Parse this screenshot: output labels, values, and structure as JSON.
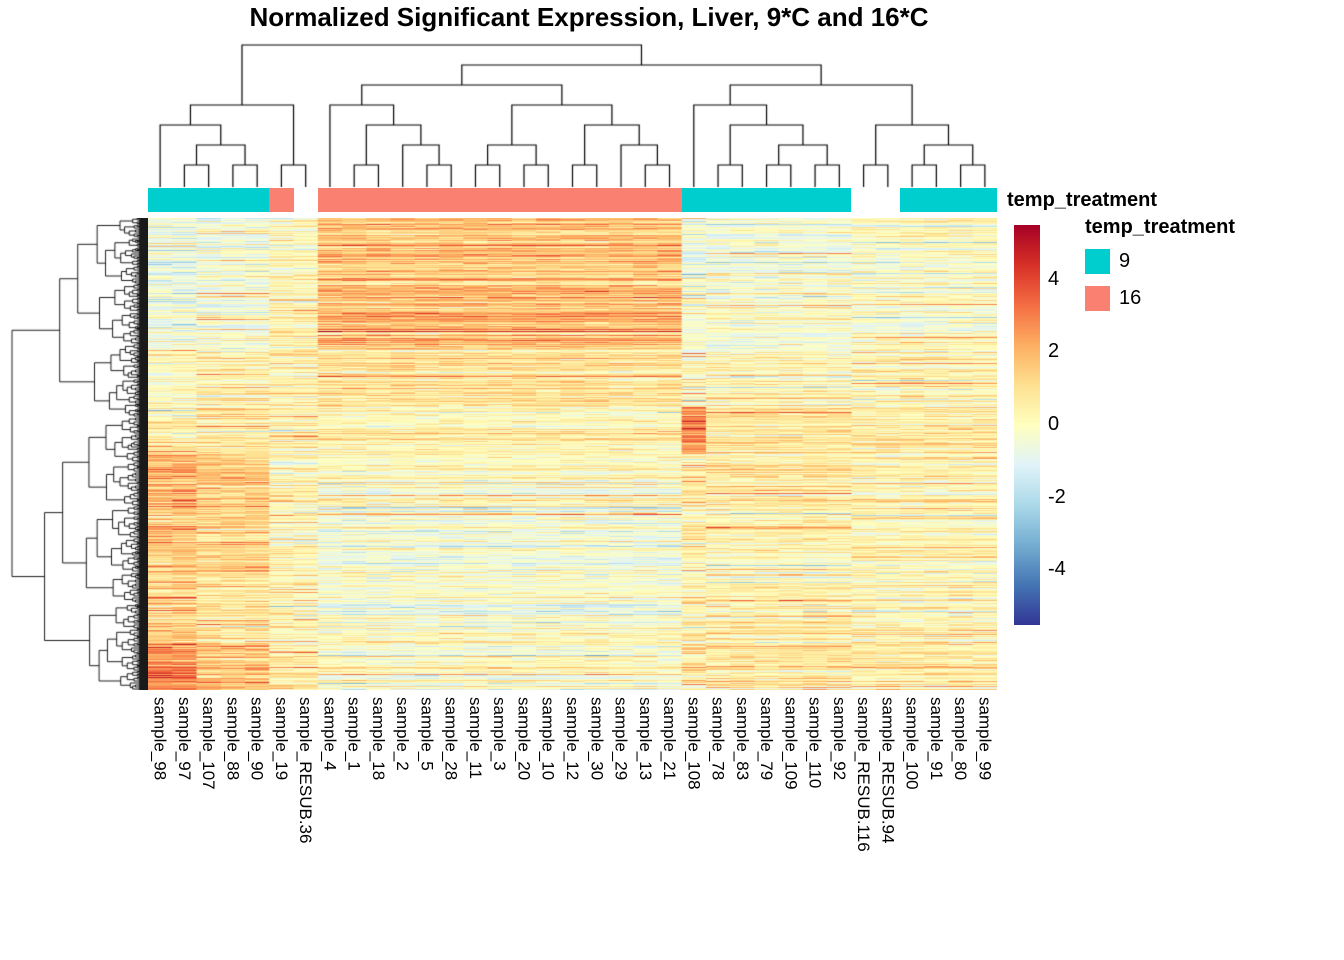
{
  "chart_data": {
    "type": "heatmap",
    "title": "Normalized Significant Expression, Liver, 9*C and 16*C",
    "columns": [
      "sample_98",
      "sample_97",
      "sample_107",
      "sample_88",
      "sample_90",
      "sample_19",
      "sample_RESUB.36",
      "sample_4",
      "sample_1",
      "sample_18",
      "sample_2",
      "sample_5",
      "sample_28",
      "sample_11",
      "sample_3",
      "sample_20",
      "sample_10",
      "sample_12",
      "sample_30",
      "sample_29",
      "sample_13",
      "sample_21",
      "sample_108",
      "sample_78",
      "sample_83",
      "sample_79",
      "sample_109",
      "sample_110",
      "sample_92",
      "sample_RESUB.116",
      "sample_RESUB.94",
      "sample_100",
      "sample_91",
      "sample_80",
      "sample_99"
    ],
    "column_annotation": {
      "name": "temp_treatment",
      "values": [
        "9",
        "9",
        "9",
        "9",
        "9",
        "16",
        null,
        "16",
        "16",
        "16",
        "16",
        "16",
        "16",
        "16",
        "16",
        "16",
        "16",
        "16",
        "16",
        "16",
        "16",
        "16",
        "9",
        "9",
        "9",
        "9",
        "9",
        "9",
        "9",
        null,
        null,
        "9",
        "9",
        "9",
        "9"
      ]
    },
    "annotation_colors": {
      "9": "#00CDCD",
      "16": "#FA8072"
    },
    "legend": {
      "title": "temp_treatment",
      "entries": [
        {
          "label": "9",
          "color": "#00CDCD"
        },
        {
          "label": "16",
          "color": "#FA8072"
        }
      ]
    },
    "colorbar": {
      "ticks": [
        4,
        2,
        0,
        -2,
        -4
      ],
      "domain": [
        -5.5,
        5.5
      ],
      "palette": [
        "#313695",
        "#4575B4",
        "#74ADD1",
        "#ABD9E9",
        "#E0F3F8",
        "#FFFFBF",
        "#FEE090",
        "#FDAE61",
        "#F46D43",
        "#D73027",
        "#A50026"
      ]
    },
    "n_rows": 472,
    "col_groups": [
      [
        0,
        1
      ],
      [
        2,
        4
      ],
      [
        5,
        6
      ],
      [
        7,
        21
      ],
      [
        22,
        22
      ],
      [
        23,
        28
      ],
      [
        29,
        34
      ]
    ],
    "row_blocks": [
      {
        "until": 0.17,
        "means": [
          -0.6,
          -0.5,
          0.2,
          1.6,
          -0.4,
          -0.4,
          -0.1
        ]
      },
      {
        "until": 0.28,
        "means": [
          -0.5,
          -0.4,
          0.4,
          1.9,
          -0.3,
          -0.3,
          0.0
        ]
      },
      {
        "until": 0.4,
        "means": [
          0.2,
          0.3,
          0.5,
          0.9,
          0.0,
          0.1,
          0.2
        ]
      },
      {
        "until": 0.5,
        "means": [
          0.5,
          0.6,
          0.3,
          0.3,
          2.8,
          0.9,
          0.8
        ]
      },
      {
        "until": 0.62,
        "means": [
          2.0,
          1.4,
          0.4,
          0.0,
          0.5,
          0.6,
          0.3
        ]
      },
      {
        "until": 0.78,
        "means": [
          1.6,
          1.2,
          0.3,
          -0.3,
          0.3,
          0.4,
          0.2
        ]
      },
      {
        "until": 0.9,
        "means": [
          1.3,
          0.8,
          0.2,
          -0.3,
          0.4,
          0.5,
          0.3
        ]
      },
      {
        "until": 1.01,
        "means": [
          3.0,
          1.8,
          0.8,
          -0.2,
          0.6,
          0.9,
          0.6
        ]
      }
    ],
    "col_tree": [
      [
        [
          0,
          [
            [
              1,
              2
            ],
            [
              3,
              4
            ]
          ]
        ],
        [
          5,
          6
        ]
      ],
      [
        [
          [
            7,
            [
              [
                8,
                9
              ],
              [
                10,
                [
                  11,
                  12
                ]
              ]
            ]
          ],
          [
            [
              [
                13,
                14
              ],
              [
                15,
                16
              ]
            ],
            [
              [
                17,
                18
              ],
              [
                19,
                [
                  20,
                  21
                ]
              ]
            ]
          ]
        ],
        [
          [
            22,
            [
              [
                23,
                24
              ],
              [
                [
                  25,
                  26
                ],
                [
                  27,
                  28
                ]
              ]
            ]
          ],
          [
            [
              29,
              30
            ],
            [
              [
                31,
                32
              ],
              [
                33,
                34
              ]
            ]
          ]
        ]
      ]
    ]
  }
}
